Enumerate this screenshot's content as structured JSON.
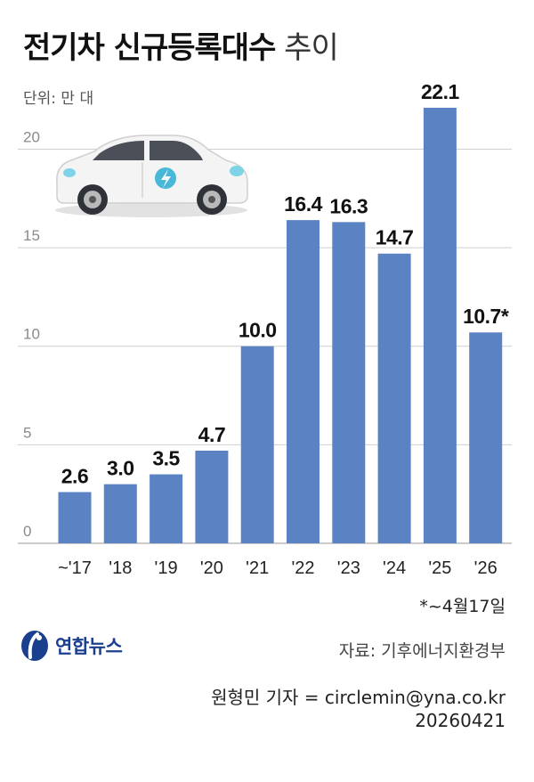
{
  "title": {
    "bold": "전기차 신규등록대수",
    "light": "추이"
  },
  "unit": "단위: 만 대",
  "chart_data": {
    "type": "bar",
    "categories": [
      "~'17",
      "'18",
      "'19",
      "'20",
      "'21",
      "'22",
      "'23",
      "'24",
      "'25",
      "'26"
    ],
    "values": [
      2.6,
      3.0,
      3.5,
      4.7,
      10.0,
      16.4,
      16.3,
      14.7,
      22.1,
      10.7
    ],
    "value_labels": [
      "2.6",
      "3.0",
      "3.5",
      "4.7",
      "10.0",
      "16.4",
      "16.3",
      "14.7",
      "22.1",
      "10.7*"
    ],
    "yticks": [
      0,
      5,
      10,
      15,
      20
    ],
    "ylim": [
      0,
      22.1
    ],
    "grid": true,
    "bar_color": "#5b83c4"
  },
  "footnote": "*~4월17일",
  "logo_text": "연합뉴스",
  "source": "자료: 기후에너지환경부",
  "credit": {
    "reporter": "원형민 기자 = circlemin@yna.co.kr",
    "date": "20260421"
  }
}
